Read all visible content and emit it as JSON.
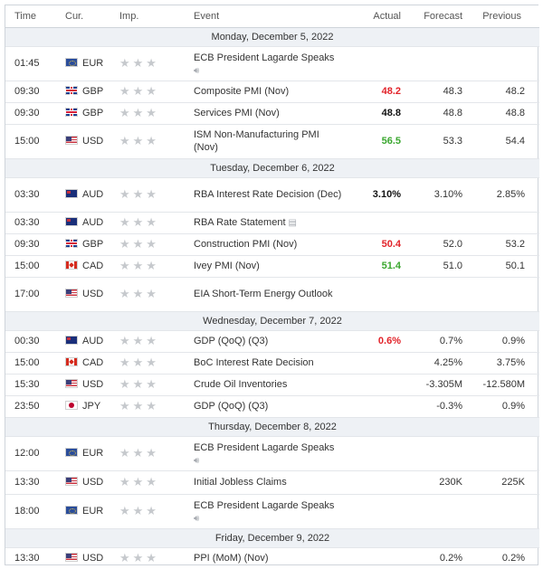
{
  "headers": {
    "time": "Time",
    "cur": "Cur.",
    "imp": "Imp.",
    "event": "Event",
    "actual": "Actual",
    "forecast": "Forecast",
    "previous": "Previous"
  },
  "colors": {
    "red": "#e2232a",
    "green": "#3aa72f",
    "day_bg": "#eef1f5"
  },
  "days": [
    {
      "label": "Monday, December 5, 2022",
      "events": [
        {
          "time": "01:45",
          "cur": "EUR",
          "event": "ECB President Lagarde Speaks",
          "icon": "speaker-icon",
          "actual": "",
          "forecast": "",
          "previous": "",
          "color": ""
        },
        {
          "time": "09:30",
          "cur": "GBP",
          "event": "Composite PMI (Nov)",
          "icon": "",
          "actual": "48.2",
          "forecast": "48.3",
          "previous": "48.2",
          "color": "red"
        },
        {
          "time": "09:30",
          "cur": "GBP",
          "event": "Services PMI (Nov)",
          "icon": "",
          "actual": "48.8",
          "forecast": "48.8",
          "previous": "48.8",
          "color": "black"
        },
        {
          "time": "15:00",
          "cur": "USD",
          "event": "ISM Non-Manufacturing PMI (Nov)",
          "icon": "",
          "actual": "56.5",
          "forecast": "53.3",
          "previous": "54.4",
          "color": "green"
        }
      ]
    },
    {
      "label": "Tuesday, December 6, 2022",
      "events": [
        {
          "time": "03:30",
          "cur": "AUD",
          "event": "RBA Interest Rate Decision (Dec)",
          "icon": "",
          "actual": "3.10%",
          "forecast": "3.10%",
          "previous": "2.85%",
          "color": "black"
        },
        {
          "time": "03:30",
          "cur": "AUD",
          "event": "RBA Rate Statement",
          "icon": "document-icon",
          "actual": "",
          "forecast": "",
          "previous": "",
          "color": ""
        },
        {
          "time": "09:30",
          "cur": "GBP",
          "event": "Construction PMI (Nov)",
          "icon": "",
          "actual": "50.4",
          "forecast": "52.0",
          "previous": "53.2",
          "color": "red"
        },
        {
          "time": "15:00",
          "cur": "CAD",
          "event": "Ivey PMI (Nov)",
          "icon": "",
          "actual": "51.4",
          "forecast": "51.0",
          "previous": "50.1",
          "color": "green"
        },
        {
          "time": "17:00",
          "cur": "USD",
          "event": "EIA Short-Term Energy Outlook",
          "icon": "",
          "actual": "",
          "forecast": "",
          "previous": "",
          "color": ""
        }
      ]
    },
    {
      "label": "Wednesday, December 7, 2022",
      "events": [
        {
          "time": "00:30",
          "cur": "AUD",
          "event": "GDP (QoQ) (Q3)",
          "icon": "",
          "actual": "0.6%",
          "forecast": "0.7%",
          "previous": "0.9%",
          "color": "red"
        },
        {
          "time": "15:00",
          "cur": "CAD",
          "event": "BoC Interest Rate Decision",
          "icon": "",
          "actual": "",
          "forecast": "4.25%",
          "previous": "3.75%",
          "color": ""
        },
        {
          "time": "15:30",
          "cur": "USD",
          "event": "Crude Oil Inventories",
          "icon": "",
          "actual": "",
          "forecast": "-3.305M",
          "previous": "-12.580M",
          "color": ""
        },
        {
          "time": "23:50",
          "cur": "JPY",
          "event": "GDP (QoQ) (Q3)",
          "icon": "",
          "actual": "",
          "forecast": "-0.3%",
          "previous": "0.9%",
          "color": ""
        }
      ]
    },
    {
      "label": "Thursday, December 8, 2022",
      "events": [
        {
          "time": "12:00",
          "cur": "EUR",
          "event": "ECB President Lagarde Speaks",
          "icon": "speaker-icon",
          "actual": "",
          "forecast": "",
          "previous": "",
          "color": ""
        },
        {
          "time": "13:30",
          "cur": "USD",
          "event": "Initial Jobless Claims",
          "icon": "",
          "actual": "",
          "forecast": "230K",
          "previous": "225K",
          "color": ""
        },
        {
          "time": "18:00",
          "cur": "EUR",
          "event": "ECB President Lagarde Speaks",
          "icon": "speaker-icon",
          "actual": "",
          "forecast": "",
          "previous": "",
          "color": ""
        }
      ]
    },
    {
      "label": "Friday, December 9, 2022",
      "events": [
        {
          "time": "13:30",
          "cur": "USD",
          "event": "PPI (MoM) (Nov)",
          "icon": "",
          "actual": "",
          "forecast": "0.2%",
          "previous": "0.2%",
          "color": ""
        }
      ]
    }
  ]
}
